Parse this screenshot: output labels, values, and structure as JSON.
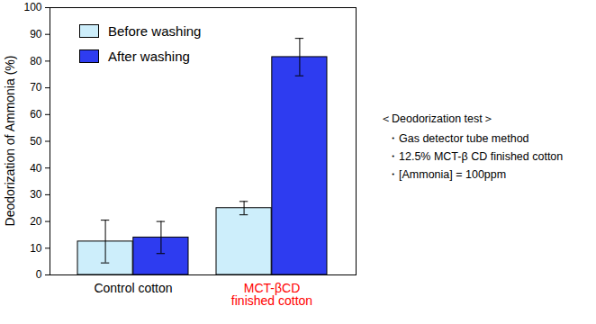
{
  "chart_data": {
    "type": "bar",
    "categories": [
      "Control cotton",
      "MCT-βCD\nfinished cotton"
    ],
    "series": [
      {
        "name": "Before washing",
        "color": "#cdeefb",
        "values": [
          12.5,
          25
        ],
        "errors": [
          8,
          2.5
        ]
      },
      {
        "name": "After washing",
        "color": "#2e3cf0",
        "values": [
          14,
          81.5
        ],
        "errors": [
          6,
          7
        ]
      }
    ],
    "y_label": "Deodorization of Ammonia (%)",
    "ylim": [
      0,
      100
    ],
    "yticks": [
      0,
      10,
      20,
      30,
      40,
      50,
      60,
      70,
      80,
      90,
      100
    ],
    "legend": "top-left",
    "annotation": {
      "title": "＜Deodorization test＞",
      "items": [
        "・Gas detector tube method",
        "・12.5% MCT-β CD finished cotton",
        "・[Ammonia] = 100ppm"
      ]
    }
  }
}
